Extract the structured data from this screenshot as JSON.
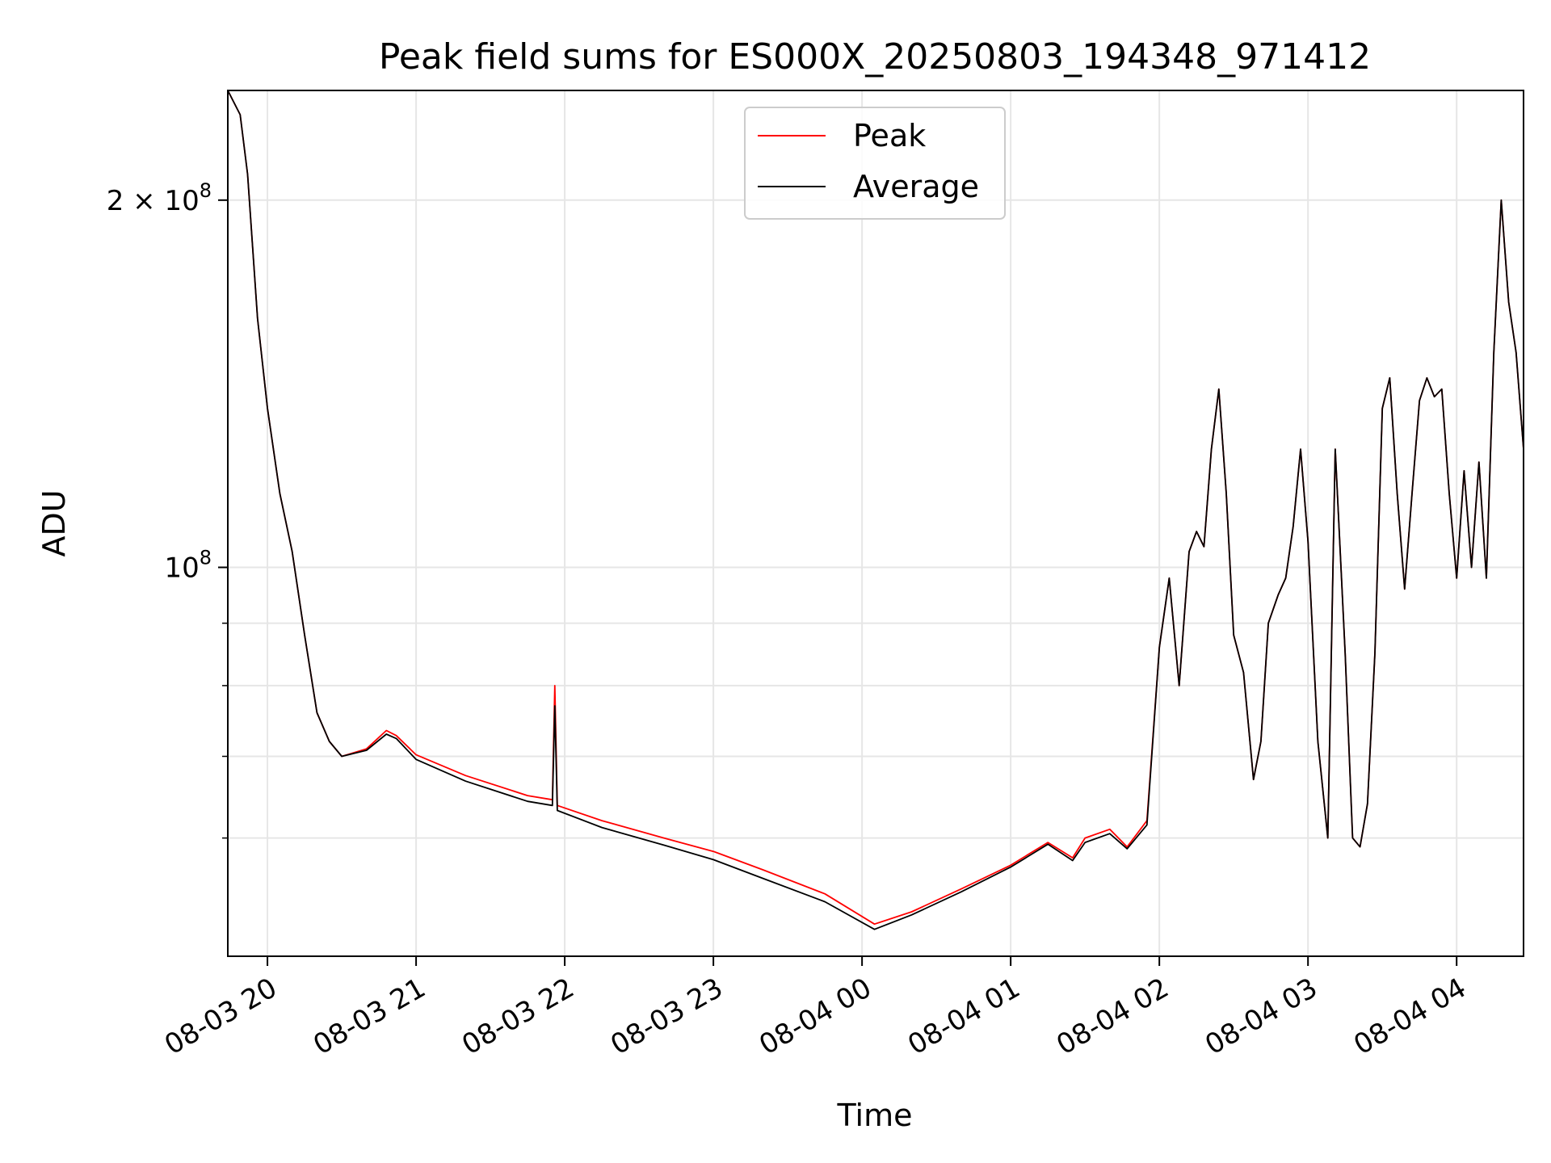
{
  "chart_data": {
    "type": "line",
    "title": "Peak field sums for ES000X_20250803_194348_971412",
    "xlabel": "Time",
    "ylabel": "ADU",
    "y_scale": "log",
    "ylim": [
      48000000,
      246000000
    ],
    "xlim": [
      "2025-08-03 19:44",
      "2025-08-04 04:27"
    ],
    "x_tick_labels": [
      "08-03 20",
      "08-03 21",
      "08-03 22",
      "08-03 23",
      "08-04 00",
      "08-04 01",
      "08-04 02",
      "08-04 03",
      "08-04 04"
    ],
    "x_ticks": [
      "2025-08-03 20:00",
      "2025-08-03 21:00",
      "2025-08-03 22:00",
      "2025-08-03 23:00",
      "2025-08-04 00:00",
      "2025-08-04 01:00",
      "2025-08-04 02:00",
      "2025-08-04 03:00",
      "2025-08-04 04:00"
    ],
    "y_tick_labels": [
      {
        "value": 200000000,
        "base": "2 × 10",
        "exp": "8"
      },
      {
        "value": 100000000,
        "base": "10",
        "exp": "8"
      }
    ],
    "y_minor_ticks": [
      60000000,
      70000000,
      80000000,
      90000000
    ],
    "grid": true,
    "legend": {
      "position": "top-center",
      "entries": [
        "Peak",
        "Average"
      ]
    },
    "colors": {
      "Peak": "#ff0000",
      "Average": "#000000"
    },
    "x": [
      "2025-08-03 19:44",
      "2025-08-03 19:49",
      "2025-08-03 19:52",
      "2025-08-03 19:56",
      "2025-08-03 20:00",
      "2025-08-03 20:05",
      "2025-08-03 20:10",
      "2025-08-03 20:15",
      "2025-08-03 20:20",
      "2025-08-03 20:25",
      "2025-08-03 20:30",
      "2025-08-03 20:40",
      "2025-08-03 20:48",
      "2025-08-03 20:52",
      "2025-08-03 21:00",
      "2025-08-03 21:20",
      "2025-08-03 21:45",
      "2025-08-03 21:55",
      "2025-08-03 21:56",
      "2025-08-03 21:57",
      "2025-08-03 22:15",
      "2025-08-03 22:40",
      "2025-08-03 23:00",
      "2025-08-03 23:20",
      "2025-08-03 23:45",
      "2025-08-04 00:05",
      "2025-08-04 00:20",
      "2025-08-04 00:40",
      "2025-08-04 01:00",
      "2025-08-04 01:15",
      "2025-08-04 01:25",
      "2025-08-04 01:30",
      "2025-08-04 01:40",
      "2025-08-04 01:47",
      "2025-08-04 01:55",
      "2025-08-04 02:00",
      "2025-08-04 02:04",
      "2025-08-04 02:08",
      "2025-08-04 02:12",
      "2025-08-04 02:15",
      "2025-08-04 02:18",
      "2025-08-04 02:21",
      "2025-08-04 02:24",
      "2025-08-04 02:27",
      "2025-08-04 02:30",
      "2025-08-04 02:34",
      "2025-08-04 02:38",
      "2025-08-04 02:41",
      "2025-08-04 02:44",
      "2025-08-04 02:48",
      "2025-08-04 02:51",
      "2025-08-04 02:54",
      "2025-08-04 02:57",
      "2025-08-04 03:00",
      "2025-08-04 03:04",
      "2025-08-04 03:08",
      "2025-08-04 03:11",
      "2025-08-04 03:15",
      "2025-08-04 03:18",
      "2025-08-04 03:21",
      "2025-08-04 03:24",
      "2025-08-04 03:27",
      "2025-08-04 03:30",
      "2025-08-04 03:33",
      "2025-08-04 03:36",
      "2025-08-04 03:39",
      "2025-08-04 03:42",
      "2025-08-04 03:45",
      "2025-08-04 03:48",
      "2025-08-04 03:51",
      "2025-08-04 03:54",
      "2025-08-04 03:57",
      "2025-08-04 04:00",
      "2025-08-04 04:03",
      "2025-08-04 04:06",
      "2025-08-04 04:09",
      "2025-08-04 04:12",
      "2025-08-04 04:15",
      "2025-08-04 04:18",
      "2025-08-04 04:21",
      "2025-08-04 04:24",
      "2025-08-04 04:27"
    ],
    "series": [
      {
        "name": "Peak",
        "values": [
          246000000,
          235000000,
          210000000,
          160000000,
          135000000,
          115000000,
          103000000,
          88000000,
          76000000,
          72000000,
          70000000,
          71000000,
          73500000,
          72800000,
          70200000,
          67500000,
          65000000,
          64500000,
          80000000,
          63800000,
          62000000,
          60000000,
          58500000,
          56500000,
          54000000,
          51000000,
          52200000,
          54500000,
          57000000,
          59500000,
          57800000,
          60000000,
          61000000,
          59000000,
          62000000,
          86000000,
          98000000,
          80000000,
          103000000,
          107000000,
          104000000,
          125000000,
          140000000,
          115000000,
          88000000,
          82000000,
          67000000,
          72000000,
          90000000,
          95000000,
          98000000,
          108000000,
          125000000,
          105000000,
          72000000,
          60000000,
          125000000,
          85000000,
          60000000,
          59000000,
          64000000,
          85000000,
          135000000,
          143000000,
          115000000,
          96000000,
          115000000,
          137000000,
          143000000,
          138000000,
          140000000,
          115000000,
          98000000,
          120000000,
          100000000,
          122000000,
          98000000,
          150000000,
          200000000,
          165000000,
          150000000,
          125000000
        ]
      },
      {
        "name": "Average",
        "values": [
          246000000,
          235000000,
          210000000,
          160000000,
          135000000,
          115000000,
          103000000,
          88000000,
          76000000,
          72000000,
          70000000,
          70800000,
          73000000,
          72400000,
          69600000,
          66800000,
          64300000,
          63800000,
          77000000,
          63200000,
          61200000,
          59200000,
          57600000,
          55600000,
          53200000,
          50500000,
          51900000,
          54200000,
          56800000,
          59300000,
          57500000,
          59500000,
          60500000,
          58800000,
          61500000,
          86000000,
          98000000,
          80000000,
          103000000,
          107000000,
          104000000,
          125000000,
          140000000,
          115000000,
          88000000,
          82000000,
          67000000,
          72000000,
          90000000,
          95000000,
          98000000,
          108000000,
          125000000,
          105000000,
          72000000,
          60000000,
          125000000,
          85000000,
          60000000,
          59000000,
          64000000,
          85000000,
          135000000,
          143000000,
          115000000,
          96000000,
          115000000,
          137000000,
          143000000,
          138000000,
          140000000,
          115000000,
          98000000,
          120000000,
          100000000,
          122000000,
          98000000,
          150000000,
          200000000,
          165000000,
          150000000,
          125000000
        ]
      }
    ]
  }
}
